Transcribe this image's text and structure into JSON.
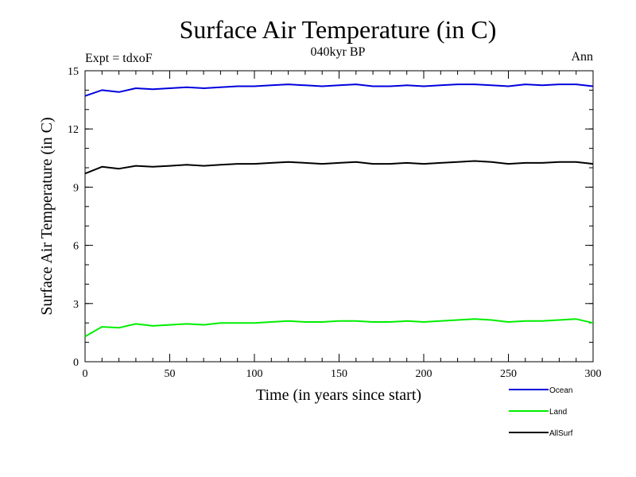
{
  "chart_data": {
    "type": "line",
    "title": "Surface Air Temperature (in C)",
    "subtitle": "040kyr BP",
    "left_label": "Expt = tdxoF",
    "right_label": "Ann",
    "xlabel": "Time (in years since start)",
    "ylabel": "Surface Air Temperature (in C)",
    "xlim": [
      0,
      300
    ],
    "ylim": [
      0,
      15
    ],
    "x_ticks": [
      0,
      50,
      100,
      150,
      200,
      250,
      300
    ],
    "y_ticks": [
      0,
      3,
      6,
      9,
      12,
      15
    ],
    "grid": false,
    "legend_position": "bottom-right",
    "x": [
      0,
      10,
      20,
      30,
      40,
      50,
      60,
      70,
      80,
      90,
      100,
      110,
      120,
      130,
      140,
      150,
      160,
      170,
      180,
      190,
      200,
      210,
      220,
      230,
      240,
      250,
      260,
      270,
      280,
      290,
      300
    ],
    "series": [
      {
        "name": "Ocean",
        "color": "#0000dd",
        "values": [
          13.7,
          14.0,
          13.9,
          14.1,
          14.05,
          14.1,
          14.15,
          14.1,
          14.15,
          14.2,
          14.2,
          14.25,
          14.3,
          14.25,
          14.2,
          14.25,
          14.3,
          14.2,
          14.2,
          14.25,
          14.2,
          14.25,
          14.3,
          14.3,
          14.25,
          14.2,
          14.3,
          14.25,
          14.3,
          14.3,
          14.2
        ]
      },
      {
        "name": "Land",
        "color": "#00ee00",
        "values": [
          1.3,
          1.8,
          1.75,
          1.95,
          1.85,
          1.9,
          1.95,
          1.9,
          2.0,
          2.0,
          2.0,
          2.05,
          2.1,
          2.05,
          2.05,
          2.1,
          2.1,
          2.05,
          2.05,
          2.1,
          2.05,
          2.1,
          2.15,
          2.2,
          2.15,
          2.05,
          2.1,
          2.1,
          2.15,
          2.2,
          2.0
        ]
      },
      {
        "name": "AllSurf",
        "color": "#000000",
        "values": [
          9.7,
          10.05,
          9.95,
          10.1,
          10.05,
          10.1,
          10.15,
          10.1,
          10.15,
          10.2,
          10.2,
          10.25,
          10.3,
          10.25,
          10.2,
          10.25,
          10.3,
          10.2,
          10.2,
          10.25,
          10.2,
          10.25,
          10.3,
          10.35,
          10.3,
          10.2,
          10.25,
          10.25,
          10.3,
          10.3,
          10.2
        ]
      }
    ]
  }
}
